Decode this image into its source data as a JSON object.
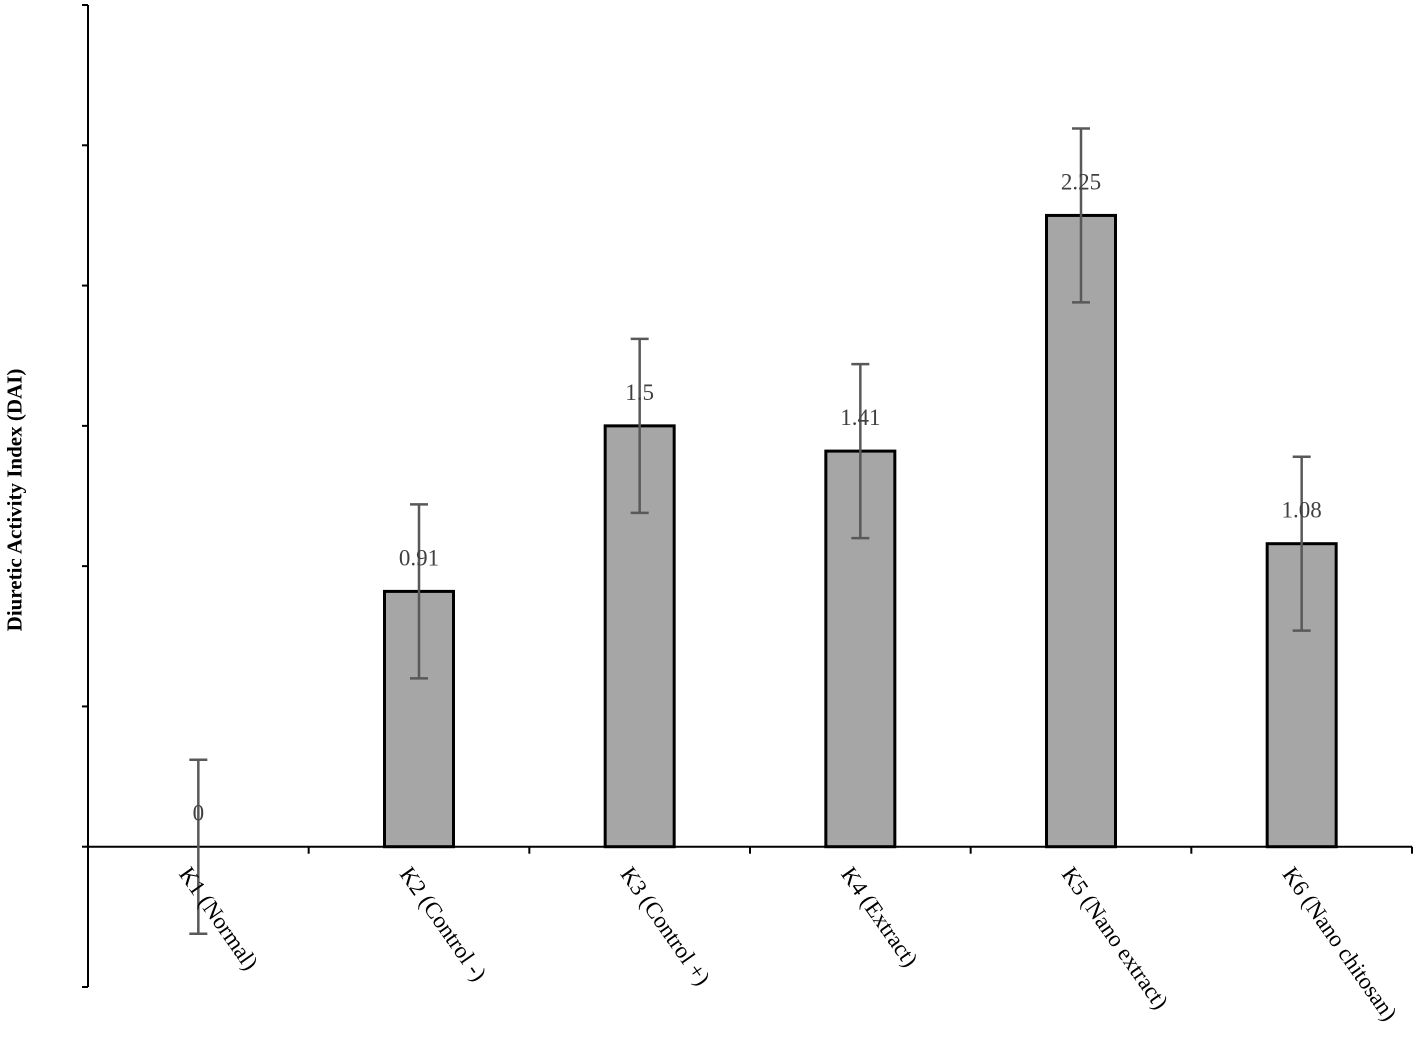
{
  "chart_data": {
    "type": "bar",
    "categories": [
      "K1 (Normal)",
      "K2 (Control -)",
      "K3 (Control +)",
      "K4 (Extract)",
      "K5 (Nano extract)",
      "K6 (Nano chitosan)"
    ],
    "values": [
      0,
      0.91,
      1.5,
      1.41,
      2.25,
      1.08
    ],
    "value_labels": [
      "0",
      "0.91",
      "1.5",
      "1.41",
      "2.25",
      "1.08"
    ],
    "errors": [
      0.31,
      0.31,
      0.31,
      0.31,
      0.31,
      0.31
    ],
    "title": "",
    "xlabel": "",
    "ylabel": "Diuretic Activity Index (DAI)",
    "ylim": [
      -0.5,
      3.0
    ],
    "y_tick_interval": 0.5,
    "y_tick_labels_shown": false,
    "grid": false,
    "legend": "none",
    "colors": {
      "bar_fill": "#a6a6a6",
      "bar_stroke": "#000000",
      "error_bar": "#595959",
      "label_text": "#404040"
    }
  }
}
